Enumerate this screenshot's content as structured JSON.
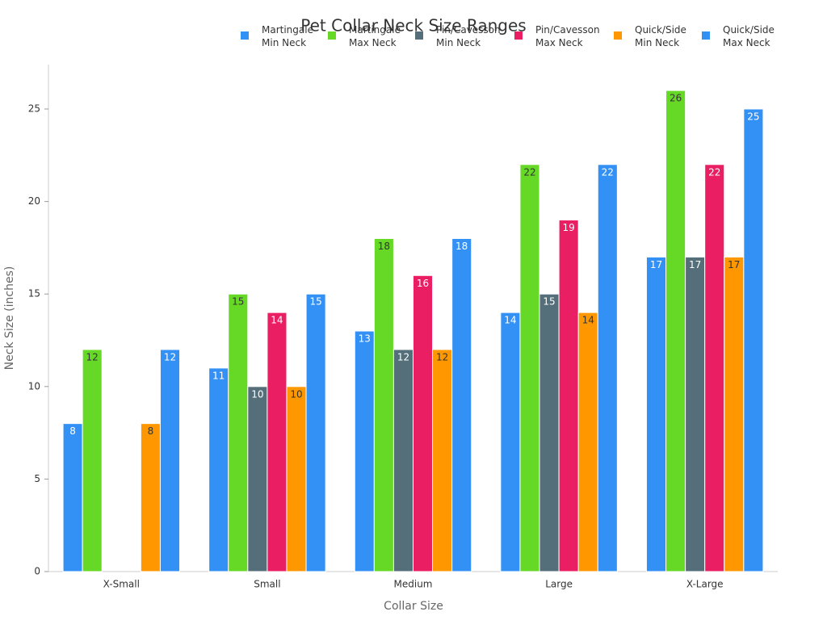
{
  "chart_data": {
    "type": "bar",
    "title": "Pet Collar Neck Size Ranges",
    "x_label": "Collar Size",
    "y_label": "Neck Size (inches)",
    "categories": [
      "X-Small",
      "Small",
      "Medium",
      "Large",
      "X-Large"
    ],
    "series": [
      {
        "name": "Martingale Min Neck",
        "color": "#3391f5",
        "values": [
          8,
          11,
          13,
          14,
          17
        ]
      },
      {
        "name": "Martingale Max Neck",
        "color": "#66d926",
        "values": [
          12,
          15,
          18,
          22,
          26
        ]
      },
      {
        "name": "Pin/Cavesson Min Neck",
        "color": "#546e7a",
        "values": [
          null,
          10,
          12,
          15,
          17
        ]
      },
      {
        "name": "Pin/Cavesson Max Neck",
        "color": "#e91e63",
        "values": [
          null,
          14,
          16,
          19,
          22
        ]
      },
      {
        "name": "Quick/Side Min Neck",
        "color": "#ff9800",
        "values": [
          8,
          10,
          12,
          14,
          17
        ]
      },
      {
        "name": "Quick/Side Max Neck",
        "color": "#3391f5",
        "values": [
          12,
          15,
          18,
          22,
          25
        ]
      }
    ],
    "ylim": [
      0,
      27.4
    ],
    "yticks": [
      0,
      5,
      10,
      15,
      20,
      25
    ],
    "grid": false
  }
}
